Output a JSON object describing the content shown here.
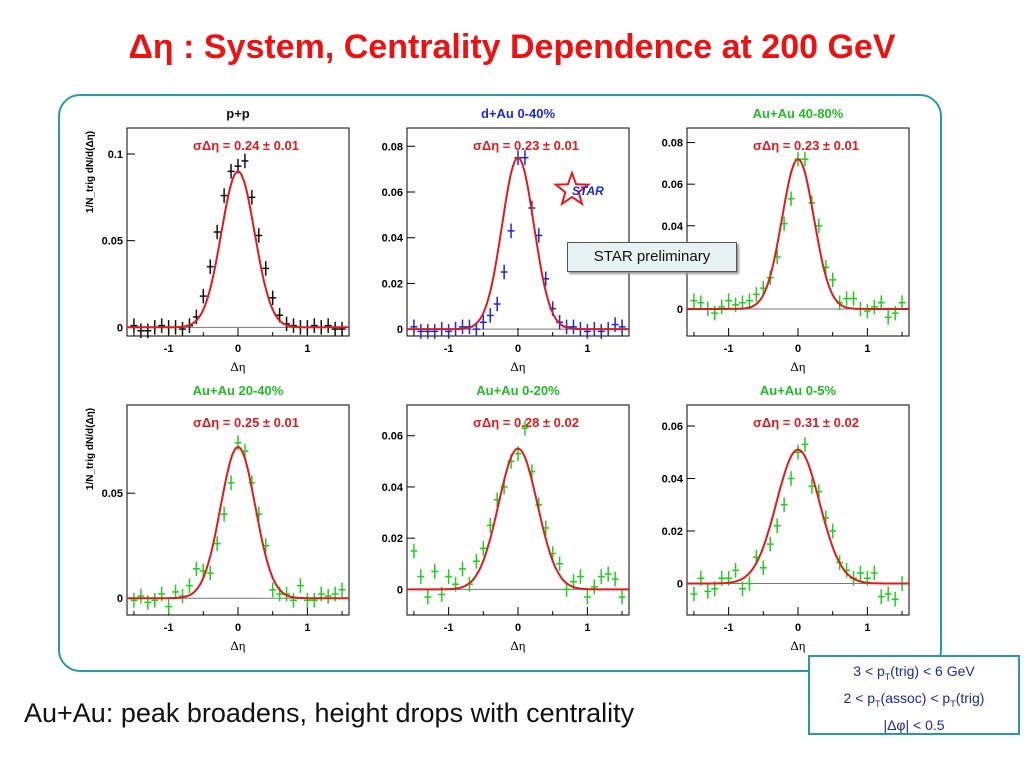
{
  "title": "Δη :  System, Centrality Dependence at 200 GeV",
  "preliminary_label": "STAR preliminary",
  "star_logo_text": "STAR",
  "caption": "Au+Au:  peak broadens, height drops with centrality",
  "cuts": [
    {
      "pre": "3 < p",
      "sub": "T",
      "post": "(trig) < 6 GeV"
    },
    {
      "pre": "2 < p",
      "sub": "T",
      "mid": "(assoc) < p",
      "sub2": "T",
      "post": "(trig)"
    },
    {
      "pre": "|Δφ| < 0.5",
      "sub": "",
      "post": ""
    }
  ],
  "colors": {
    "title": "#ee1111",
    "frame": "#2a9aa0",
    "fit": "#e01b1b",
    "sigma": "#e01b1b",
    "pp_data": "#111111",
    "dau_data": "#1a2ad8",
    "auau_data": "#22cc22",
    "dau_title": "#1a2ad8",
    "auau_title": "#22bb22",
    "pp_title": "#111111"
  },
  "chart_data": [
    {
      "type": "scatter",
      "title": "p+p",
      "title_color_key": "pp_title",
      "data_color_key": "pp_data",
      "sigma_label": "σΔη = 0.24 ± 0.01",
      "xlabel": "Δη",
      "ylabel": "1/N_trig dN/d(Δη)",
      "xlim": [
        -1.6,
        1.6
      ],
      "ylim": [
        -0.005,
        0.115
      ],
      "xticks": [
        -1,
        0,
        1
      ],
      "yticks": [
        0,
        0.05,
        0.1
      ],
      "ytick_labels": [
        "0",
        "0.05",
        "0.1"
      ],
      "fit": {
        "amplitude": 0.09,
        "sigma": 0.24
      },
      "x": [
        -1.5,
        -1.4,
        -1.3,
        -1.2,
        -1.1,
        -1.0,
        -0.9,
        -0.8,
        -0.7,
        -0.6,
        -0.5,
        -0.4,
        -0.3,
        -0.2,
        -0.1,
        0.0,
        0.1,
        0.2,
        0.3,
        0.4,
        0.5,
        0.6,
        0.7,
        0.8,
        0.9,
        1.0,
        1.1,
        1.2,
        1.3,
        1.4,
        1.5
      ],
      "y": [
        0.001,
        -0.002,
        -0.002,
        0.0,
        0.001,
        0.0,
        0.0,
        -0.001,
        0.001,
        0.006,
        0.018,
        0.035,
        0.055,
        0.076,
        0.09,
        0.093,
        0.096,
        0.075,
        0.053,
        0.034,
        0.017,
        0.007,
        0.002,
        0.001,
        0.0,
        0.0,
        0.001,
        0.0,
        0.001,
        -0.001,
        -0.001
      ]
    },
    {
      "type": "scatter",
      "title": "d+Au 0-40%",
      "title_color_key": "dau_title",
      "data_color_key": "dau_data",
      "sigma_label": "σΔη = 0.23 ± 0.01",
      "xlabel": "Δη",
      "ylabel": "",
      "xlim": [
        -1.6,
        1.6
      ],
      "ylim": [
        -0.003,
        0.088
      ],
      "xticks": [
        -1,
        0,
        1
      ],
      "yticks": [
        0,
        0.02,
        0.04,
        0.06,
        0.08
      ],
      "ytick_labels": [
        "0",
        "0.02",
        "0.04",
        "0.06",
        "0.08"
      ],
      "fit": {
        "amplitude": 0.075,
        "sigma": 0.23
      },
      "x": [
        -1.5,
        -1.4,
        -1.3,
        -1.2,
        -1.1,
        -1.0,
        -0.9,
        -0.8,
        -0.7,
        -0.6,
        -0.5,
        -0.4,
        -0.3,
        -0.2,
        -0.1,
        0.0,
        0.1,
        0.2,
        0.3,
        0.4,
        0.5,
        0.6,
        0.7,
        0.8,
        0.9,
        1.0,
        1.1,
        1.2,
        1.3,
        1.4,
        1.5
      ],
      "y": [
        0.001,
        -0.001,
        -0.001,
        -0.001,
        0.0,
        -0.001,
        0.0,
        0.001,
        0.001,
        0.0,
        0.003,
        0.006,
        0.011,
        0.025,
        0.043,
        0.075,
        0.075,
        0.053,
        0.041,
        0.022,
        0.009,
        0.003,
        0.001,
        0.001,
        0.0,
        -0.001,
        0.0,
        -0.001,
        0.0,
        0.002,
        0.001
      ]
    },
    {
      "type": "scatter",
      "title": "Au+Au 40-80%",
      "title_color_key": "auau_title",
      "data_color_key": "auau_data",
      "sigma_label": "σΔη = 0.23 ± 0.01",
      "xlabel": "Δη",
      "ylabel": "",
      "xlim": [
        -1.6,
        1.6
      ],
      "ylim": [
        -0.013,
        0.087
      ],
      "xticks": [
        -1,
        0,
        1
      ],
      "yticks": [
        0,
        0.02,
        0.04,
        0.06,
        0.08
      ],
      "ytick_labels": [
        "0",
        "",
        "0.04",
        "0.06",
        "0.08"
      ],
      "fit": {
        "amplitude": 0.072,
        "sigma": 0.23
      },
      "x": [
        -1.5,
        -1.4,
        -1.3,
        -1.2,
        -1.1,
        -1.0,
        -0.9,
        -0.8,
        -0.7,
        -0.6,
        -0.5,
        -0.4,
        -0.3,
        -0.2,
        -0.1,
        0.0,
        0.1,
        0.2,
        0.3,
        0.4,
        0.5,
        0.6,
        0.7,
        0.8,
        0.9,
        1.0,
        1.1,
        1.2,
        1.3,
        1.4,
        1.5
      ],
      "y": [
        0.004,
        0.003,
        0.0,
        -0.002,
        0.001,
        0.004,
        0.002,
        0.003,
        0.004,
        0.007,
        0.01,
        0.015,
        0.025,
        0.041,
        0.053,
        0.072,
        0.072,
        0.051,
        0.04,
        0.02,
        0.014,
        0.003,
        0.005,
        0.005,
        0.0,
        -0.001,
        0.001,
        0.003,
        -0.004,
        -0.002,
        0.003
      ]
    },
    {
      "type": "scatter",
      "title": "Au+Au 20-40%",
      "title_color_key": "auau_title",
      "data_color_key": "auau_data",
      "sigma_label": "σΔη = 0.25 ± 0.01",
      "xlabel": "Δη",
      "ylabel": "1/N_trig dN/d(Δη)",
      "xlim": [
        -1.6,
        1.6
      ],
      "ylim": [
        -0.008,
        0.092
      ],
      "xticks": [
        -1,
        0,
        1
      ],
      "yticks": [
        0,
        0.05
      ],
      "ytick_labels": [
        "0",
        "0.05"
      ],
      "fit": {
        "amplitude": 0.072,
        "sigma": 0.25
      },
      "x": [
        -1.5,
        -1.4,
        -1.3,
        -1.2,
        -1.1,
        -1.0,
        -0.9,
        -0.8,
        -0.7,
        -0.6,
        -0.5,
        -0.4,
        -0.3,
        -0.2,
        -0.1,
        0.0,
        0.1,
        0.2,
        0.3,
        0.4,
        0.5,
        0.6,
        0.7,
        0.8,
        0.9,
        1.0,
        1.1,
        1.2,
        1.3,
        1.4,
        1.5
      ],
      "y": [
        -0.001,
        0.001,
        -0.002,
        -0.001,
        0.002,
        -0.004,
        0.003,
        0.001,
        0.006,
        0.014,
        0.013,
        0.012,
        0.026,
        0.04,
        0.055,
        0.074,
        0.07,
        0.055,
        0.04,
        0.025,
        0.004,
        0.002,
        0.002,
        -0.001,
        0.006,
        -0.001,
        -0.001,
        0.002,
        0.001,
        0.002,
        0.004
      ]
    },
    {
      "type": "scatter",
      "title": "Au+Au 0-20%",
      "title_color_key": "auau_title",
      "data_color_key": "auau_data",
      "sigma_label": "σΔη = 0.28 ± 0.02",
      "xlabel": "Δη",
      "ylabel": "",
      "xlim": [
        -1.6,
        1.6
      ],
      "ylim": [
        -0.01,
        0.072
      ],
      "xticks": [
        -1,
        0,
        1
      ],
      "yticks": [
        0,
        0.02,
        0.04,
        0.06
      ],
      "ytick_labels": [
        "0",
        "0.02",
        "0.04",
        "0.06"
      ],
      "fit": {
        "amplitude": 0.055,
        "sigma": 0.28
      },
      "x": [
        -1.5,
        -1.4,
        -1.3,
        -1.2,
        -1.1,
        -1.0,
        -0.9,
        -0.8,
        -0.7,
        -0.6,
        -0.5,
        -0.4,
        -0.3,
        -0.2,
        -0.1,
        0.0,
        0.1,
        0.2,
        0.3,
        0.4,
        0.5,
        0.6,
        0.7,
        0.8,
        0.9,
        1.0,
        1.1,
        1.2,
        1.3,
        1.4,
        1.5
      ],
      "y": [
        0.015,
        0.005,
        -0.003,
        0.007,
        -0.002,
        0.005,
        0.002,
        0.008,
        0.002,
        0.011,
        0.016,
        0.025,
        0.035,
        0.04,
        0.05,
        0.053,
        0.063,
        0.046,
        0.033,
        0.024,
        0.014,
        0.01,
        0.0,
        0.003,
        0.005,
        -0.003,
        0.001,
        0.005,
        0.006,
        0.004,
        -0.003
      ]
    },
    {
      "type": "scatter",
      "title": "Au+Au 0-5%",
      "title_color_key": "auau_title",
      "data_color_key": "auau_data",
      "sigma_label": "σΔη = 0.31 ± 0.02",
      "xlabel": "Δη",
      "ylabel": "",
      "xlim": [
        -1.6,
        1.6
      ],
      "ylim": [
        -0.012,
        0.068
      ],
      "xticks": [
        -1,
        0,
        1
      ],
      "yticks": [
        0,
        0.02,
        0.04,
        0.06
      ],
      "ytick_labels": [
        "0",
        "0.02",
        "0.04",
        "0.06"
      ],
      "fit": {
        "amplitude": 0.051,
        "sigma": 0.31
      },
      "x": [
        -1.5,
        -1.4,
        -1.3,
        -1.2,
        -1.1,
        -1.0,
        -0.9,
        -0.8,
        -0.7,
        -0.6,
        -0.5,
        -0.4,
        -0.3,
        -0.2,
        -0.1,
        0.0,
        0.1,
        0.2,
        0.3,
        0.4,
        0.5,
        0.6,
        0.7,
        0.8,
        0.9,
        1.0,
        1.1,
        1.2,
        1.3,
        1.4,
        1.5
      ],
      "y": [
        -0.004,
        0.002,
        -0.003,
        -0.002,
        0.002,
        0.002,
        0.005,
        -0.002,
        0.0,
        0.01,
        0.006,
        0.015,
        0.022,
        0.03,
        0.04,
        0.05,
        0.053,
        0.037,
        0.035,
        0.025,
        0.02,
        0.008,
        0.005,
        0.002,
        0.004,
        0.002,
        0.004,
        -0.005,
        -0.004,
        -0.006,
        0.0
      ]
    }
  ]
}
